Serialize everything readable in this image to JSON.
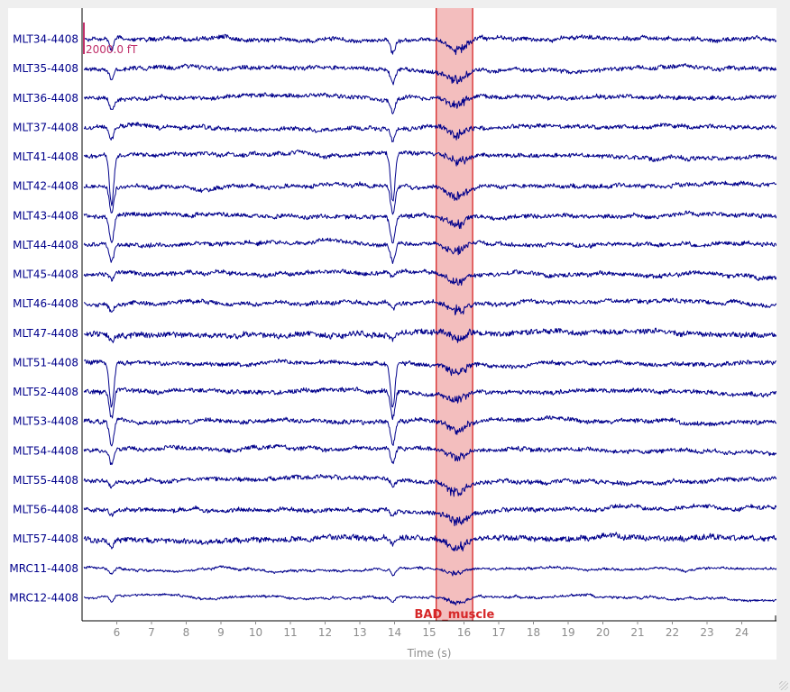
{
  "chart_data": {
    "type": "line",
    "xlabel": "Time (s)",
    "xlim": [
      5,
      25
    ],
    "xticks": [
      6,
      7,
      8,
      9,
      10,
      11,
      12,
      13,
      14,
      15,
      16,
      17,
      18,
      19,
      20,
      21,
      22,
      23,
      24
    ],
    "channels": [
      "MLT34-4408",
      "MLT35-4408",
      "MLT36-4408",
      "MLT37-4408",
      "MLT41-4408",
      "MLT42-4408",
      "MLT43-4408",
      "MLT44-4408",
      "MLT45-4408",
      "MLT46-4408",
      "MLT47-4408",
      "MLT51-4408",
      "MLT52-4408",
      "MLT53-4408",
      "MLT54-4408",
      "MLT55-4408",
      "MLT56-4408",
      "MLT57-4408",
      "MRC11-4408",
      "MRC12-4408"
    ],
    "scale_bar": {
      "label": "2000.0 fT",
      "value_fT": 2000
    },
    "annotations": [
      {
        "label": "BAD_muscle",
        "start": 15.2,
        "end": 16.25,
        "color": "#d62728"
      }
    ],
    "trace_color": "#00008b",
    "blink_events_s": [
      5.85,
      13.95
    ]
  }
}
